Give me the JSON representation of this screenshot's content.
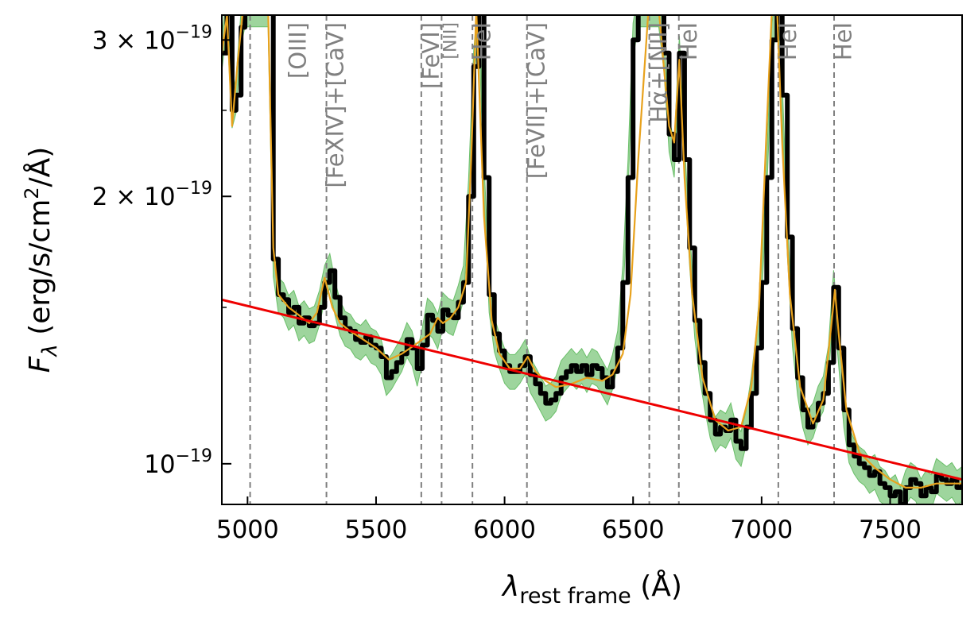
{
  "chart_data": {
    "type": "line",
    "title": "",
    "xlabel": {
      "main": "λ",
      "sub": "rest frame",
      "unit": " (Å)"
    },
    "ylabel": {
      "main": "F",
      "sub": "λ",
      "unit": " (erg/s/cm",
      "sup": "2",
      "tail": "/Å)"
    },
    "xlim": [
      4900,
      7780
    ],
    "ylim": [
      9e-20,
      3.2e-19
    ],
    "yscale": "log",
    "grid": false,
    "x_ticks": [
      {
        "value": 5000,
        "label": "5000"
      },
      {
        "value": 5500,
        "label": "5500"
      },
      {
        "value": 6000,
        "label": "6000"
      },
      {
        "value": 6500,
        "label": "6500"
      },
      {
        "value": 7000,
        "label": "7000"
      },
      {
        "value": 7500,
        "label": "7500"
      }
    ],
    "y_ticks": [
      {
        "value": 1e-19,
        "base": "10",
        "exp": "−19",
        "prefix": ""
      },
      {
        "value": 2e-19,
        "base": "10",
        "exp": "−19",
        "prefix": "2 × "
      },
      {
        "value": 3e-19,
        "base": "10",
        "exp": "−19",
        "prefix": "3 × "
      }
    ],
    "emission_lines": [
      {
        "x": 5007,
        "label": ""
      },
      {
        "x": 5303,
        "label": "[FeXIV]+[CaV]",
        "label_top": 1.9e-19
      },
      {
        "x": 5159,
        "label": "[OIII]",
        "label_top": 2.5e-19
      },
      {
        "x": 5677,
        "label": "[FeVI]",
        "label_top": 2.5e-19
      },
      {
        "x": 5755,
        "label": "[NII]",
        "label_top": 2.5e-19,
        "small": true
      },
      {
        "x": 5876,
        "label": "HeI",
        "label_top": 2.5e-19
      },
      {
        "x": 6087,
        "label": "[FeVII]+[CaV]",
        "label_top": 1.75e-19
      },
      {
        "x": 6563,
        "label": "Hα+[NII]",
        "label_top": 2.1e-19
      },
      {
        "x": 6678,
        "label": "HeI",
        "label_top": 2.5e-19
      },
      {
        "x": 7065,
        "label": "HeI",
        "label_top": 2.5e-19
      },
      {
        "x": 7281,
        "label": "HeI",
        "label_top": 2.5e-19
      }
    ],
    "dashed_line_positions": [
      5010,
      5307,
      5676,
      5755,
      5875,
      6087,
      6563,
      6678,
      7065,
      7282
    ],
    "continuum": {
      "color": "#ee0000",
      "x": [
        4900,
        7780
      ],
      "y": [
        1.53e-19,
        9.6e-20
      ]
    },
    "series": [
      {
        "role": "observed",
        "color": "#000000",
        "x": [
          4900,
          4920,
          4940,
          4955,
          4975,
          4990,
          5020,
          5040,
          5060,
          5080,
          5100,
          5120,
          5140,
          5160,
          5180,
          5200,
          5220,
          5240,
          5260,
          5280,
          5300,
          5320,
          5340,
          5360,
          5380,
          5400,
          5420,
          5440,
          5460,
          5480,
          5500,
          5520,
          5540,
          5560,
          5580,
          5600,
          5620,
          5640,
          5660,
          5680,
          5700,
          5720,
          5740,
          5760,
          5780,
          5800,
          5820,
          5840,
          5860,
          5880,
          5900,
          5920,
          5940,
          5960,
          5980,
          6000,
          6020,
          6040,
          6060,
          6080,
          6100,
          6120,
          6140,
          6160,
          6180,
          6200,
          6220,
          6240,
          6260,
          6280,
          6300,
          6320,
          6340,
          6360,
          6380,
          6400,
          6420,
          6440,
          6460,
          6480,
          6500,
          6520,
          6540,
          6560,
          6580,
          6600,
          6620,
          6640,
          6660,
          6680,
          6700,
          6720,
          6740,
          6760,
          6780,
          6800,
          6820,
          6840,
          6860,
          6880,
          6900,
          6920,
          6940,
          6960,
          6980,
          7000,
          7020,
          7040,
          7060,
          7080,
          7100,
          7120,
          7140,
          7160,
          7180,
          7200,
          7220,
          7240,
          7260,
          7280,
          7300,
          7320,
          7340,
          7360,
          7380,
          7400,
          7420,
          7440,
          7460,
          7480,
          7500,
          7520,
          7540,
          7560,
          7580,
          7600,
          7620,
          7640,
          7660,
          7680,
          7700,
          7720,
          7740,
          7760,
          7780
        ],
        "y": [
          2.9e-19,
          3.25e-19,
          2.5e-19,
          2.6e-19,
          3.1e-19,
          3.25e-19,
          3.25e-19,
          3.25e-19,
          3.25e-19,
          3.25e-19,
          1.7e-19,
          1.55e-19,
          1.53e-19,
          1.48e-19,
          1.5e-19,
          1.44e-19,
          1.46e-19,
          1.43e-19,
          1.44e-19,
          1.5e-19,
          1.6e-19,
          1.65e-19,
          1.54e-19,
          1.46e-19,
          1.42e-19,
          1.41e-19,
          1.38e-19,
          1.37e-19,
          1.39e-19,
          1.36e-19,
          1.35e-19,
          1.32e-19,
          1.25e-19,
          1.27e-19,
          1.3e-19,
          1.33e-19,
          1.38e-19,
          1.35e-19,
          1.28e-19,
          1.36e-19,
          1.47e-19,
          1.45e-19,
          1.41e-19,
          1.49e-19,
          1.47e-19,
          1.46e-19,
          1.52e-19,
          1.6e-19,
          2e-19,
          2.8e-19,
          3.25e-19,
          2.1e-19,
          1.55e-19,
          1.4e-19,
          1.34e-19,
          1.29e-19,
          1.27e-19,
          1.27e-19,
          1.29e-19,
          1.32e-19,
          1.26e-19,
          1.23e-19,
          1.2e-19,
          1.17e-19,
          1.18e-19,
          1.2e-19,
          1.25e-19,
          1.27e-19,
          1.29e-19,
          1.27e-19,
          1.29e-19,
          1.26e-19,
          1.29e-19,
          1.28e-19,
          1.25e-19,
          1.22e-19,
          1.27e-19,
          1.35e-19,
          1.6e-19,
          2.1e-19,
          3e-19,
          3.25e-19,
          3.25e-19,
          3.25e-19,
          3.25e-19,
          3.25e-19,
          2.9e-19,
          2.35e-19,
          2.2e-19,
          2.9e-19,
          2.2e-19,
          1.75e-19,
          1.45e-19,
          1.3e-19,
          1.2e-19,
          1.12e-19,
          1.08e-19,
          1.1e-19,
          1.09e-19,
          1.12e-19,
          1.06e-19,
          1.04e-19,
          1.1e-19,
          1.2e-19,
          1.35e-19,
          1.6e-19,
          2.1e-19,
          3e-19,
          3.25e-19,
          2.6e-19,
          1.8e-19,
          1.42e-19,
          1.25e-19,
          1.15e-19,
          1.1e-19,
          1.12e-19,
          1.17e-19,
          1.2e-19,
          1.3e-19,
          1.58e-19,
          1.35e-19,
          1.15e-19,
          1.05e-19,
          1.02e-19,
          1e-19,
          9.9e-20,
          9.7e-20,
          9.8e-20,
          9.5e-20,
          9.4e-20,
          9.2e-20,
          9.3e-20,
          9e-20,
          9.4e-20,
          9.6e-20,
          9.5e-20,
          9.2e-20,
          9.4e-20,
          9.3e-20,
          9.7e-20,
          9.6e-20,
          9.5e-20,
          9.6e-20,
          9.4e-20,
          9.5e-20
        ]
      },
      {
        "role": "model",
        "color": "#e8a21d",
        "x": [
          4900,
          4920,
          4940,
          4960,
          4980,
          5000,
          5040,
          5080,
          5100,
          5120,
          5160,
          5200,
          5240,
          5270,
          5300,
          5330,
          5360,
          5400,
          5450,
          5500,
          5550,
          5600,
          5650,
          5680,
          5710,
          5740,
          5760,
          5790,
          5820,
          5850,
          5870,
          5890,
          5920,
          5950,
          5980,
          6020,
          6060,
          6090,
          6120,
          6160,
          6200,
          6260,
          6320,
          6380,
          6420,
          6460,
          6490,
          6520,
          6560,
          6600,
          6640,
          6660,
          6680,
          6700,
          6730,
          6770,
          6820,
          6870,
          6920,
          6960,
          6990,
          7020,
          7040,
          7060,
          7080,
          7110,
          7150,
          7200,
          7240,
          7270,
          7285,
          7300,
          7330,
          7380,
          7440,
          7500,
          7560,
          7620,
          7680,
          7740,
          7780
        ],
        "y": [
          2.9e-19,
          3.2e-19,
          2.4e-19,
          2.8e-19,
          3.2e-19,
          3.25e-19,
          3.25e-19,
          3.25e-19,
          1.75e-19,
          1.55e-19,
          1.5e-19,
          1.47e-19,
          1.44e-19,
          1.48e-19,
          1.62e-19,
          1.5e-19,
          1.44e-19,
          1.41e-19,
          1.38e-19,
          1.35e-19,
          1.31e-19,
          1.33e-19,
          1.36e-19,
          1.38e-19,
          1.4e-19,
          1.46e-19,
          1.44e-19,
          1.46e-19,
          1.5e-19,
          1.6e-19,
          2.2e-19,
          3.25e-19,
          1.9e-19,
          1.45e-19,
          1.33e-19,
          1.28e-19,
          1.28e-19,
          1.32e-19,
          1.27e-19,
          1.24e-19,
          1.22e-19,
          1.23e-19,
          1.25e-19,
          1.24e-19,
          1.26e-19,
          1.33e-19,
          1.55e-19,
          2.2e-19,
          3.25e-19,
          3.25e-19,
          2.4e-19,
          2.3e-19,
          2.85e-19,
          2.1e-19,
          1.55e-19,
          1.25e-19,
          1.12e-19,
          1.09e-19,
          1.1e-19,
          1.22e-19,
          1.5e-19,
          2.4e-19,
          3.25e-19,
          3.25e-19,
          2.3e-19,
          1.55e-19,
          1.22e-19,
          1.11e-19,
          1.18e-19,
          1.42e-19,
          1.57e-19,
          1.4e-19,
          1.15e-19,
          1.03e-19,
          9.9e-20,
          9.6e-20,
          9.4e-20,
          9.4e-20,
          9.5e-20,
          9.5e-20,
          9.5e-20
        ]
      }
    ],
    "error_band": {
      "color": "#6abf69",
      "fraction": 0.045
    }
  }
}
